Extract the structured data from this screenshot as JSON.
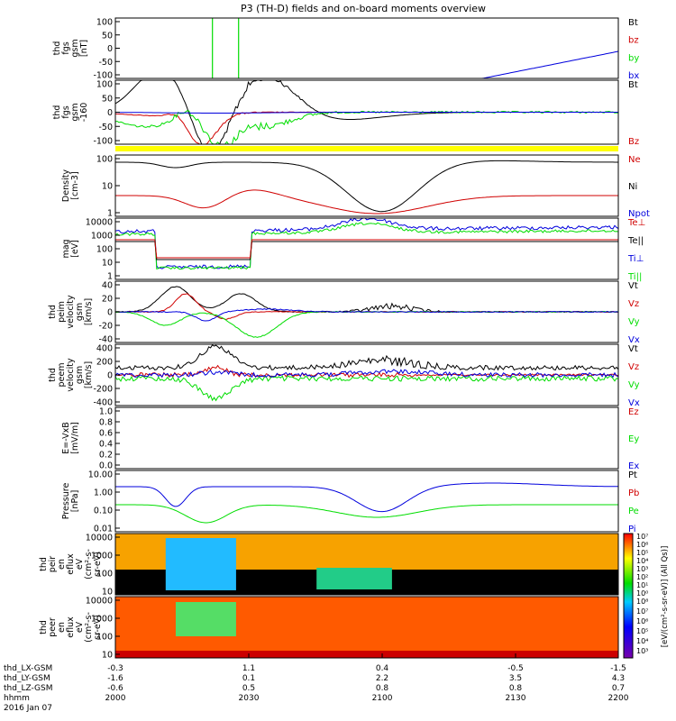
{
  "title": "P3 (TH-D) fields and on-board moments overview",
  "colors": {
    "black": "#000000",
    "red": "#d00000",
    "green": "#00dd00",
    "blue": "#0000dd",
    "yellow": "#ffff00"
  },
  "chart_data": [
    {
      "type": "line",
      "ylabel": [
        "thd",
        "fgs",
        "gsm",
        "[nT]"
      ],
      "yticks": [
        "100",
        "50",
        "0",
        "-50",
        "-100"
      ],
      "ylim": [
        -100,
        100
      ],
      "legend": [
        {
          "label": "Bt",
          "color": "#000000"
        },
        {
          "label": "bz",
          "color": "#d00000"
        },
        {
          "label": "by",
          "color": "#00dd00"
        },
        {
          "label": "bx",
          "color": "#0000dd"
        }
      ]
    },
    {
      "type": "line",
      "ylabel": [
        "thd",
        "fgs",
        "gsm",
        "-160"
      ],
      "yticks": [
        "100",
        "50",
        "0",
        "-50",
        "-100"
      ],
      "ylim": [
        -120,
        110
      ],
      "legend": [
        {
          "label": "Bt",
          "color": "#000000"
        },
        {
          "label": "Bz",
          "color": "#d00000"
        }
      ]
    },
    {
      "type": "line",
      "ylabel": [
        "Density",
        "[cm-3]"
      ],
      "yticks": [
        "100",
        "10",
        "1"
      ],
      "scale": "log",
      "legend": [
        {
          "label": "Ne",
          "color": "#d00000"
        },
        {
          "label": "Ni",
          "color": "#000000"
        },
        {
          "label": "Npot",
          "color": "#0000dd"
        }
      ]
    },
    {
      "type": "line",
      "ylabel": [
        "mag",
        "[eV]"
      ],
      "yticks": [
        "10000",
        "1000",
        "100",
        "10",
        "1"
      ],
      "scale": "log",
      "legend": [
        {
          "label": "Te⊥",
          "color": "#d00000"
        },
        {
          "label": "Te||",
          "color": "#000000"
        },
        {
          "label": "Ti⊥",
          "color": "#0000dd"
        },
        {
          "label": "Ti||",
          "color": "#00dd00"
        }
      ]
    },
    {
      "type": "line",
      "ylabel": [
        "thd",
        "peim",
        "velocity",
        "gsm",
        "[km/s]"
      ],
      "yticks": [
        "40",
        "20",
        "0",
        "-20",
        "-40"
      ],
      "ylim": [
        -40,
        40
      ],
      "legend": [
        {
          "label": "Vt",
          "color": "#000000"
        },
        {
          "label": "Vz",
          "color": "#d00000"
        },
        {
          "label": "Vy",
          "color": "#00dd00"
        },
        {
          "label": "Vx",
          "color": "#0000dd"
        }
      ]
    },
    {
      "type": "line",
      "ylabel": [
        "thd",
        "peem",
        "velocity",
        "gsm",
        "[km/s]"
      ],
      "yticks": [
        "400",
        "200",
        "0",
        "-200",
        "-400"
      ],
      "ylim": [
        -400,
        400
      ],
      "legend": [
        {
          "label": "Vt",
          "color": "#000000"
        },
        {
          "label": "Vz",
          "color": "#d00000"
        },
        {
          "label": "Vy",
          "color": "#00dd00"
        },
        {
          "label": "Vx",
          "color": "#0000dd"
        }
      ]
    },
    {
      "type": "line",
      "ylabel": [
        "E=-VxB",
        "[mV/m]"
      ],
      "yticks": [
        "1.0",
        "0.8",
        "0.6",
        "0.4",
        "0.2",
        "0.0"
      ],
      "ylim": [
        0,
        1
      ],
      "legend": [
        {
          "label": "Ez",
          "color": "#d00000"
        },
        {
          "label": "Ey",
          "color": "#00dd00"
        },
        {
          "label": "Ex",
          "color": "#0000dd"
        }
      ]
    },
    {
      "type": "line",
      "ylabel": [
        "Pressure",
        "[nPa]"
      ],
      "yticks": [
        "10.00",
        "1.00",
        "0.10",
        "0.01"
      ],
      "scale": "log",
      "legend": [
        {
          "label": "Pt",
          "color": "#000000"
        },
        {
          "label": "Pb",
          "color": "#d00000"
        },
        {
          "label": "Pe",
          "color": "#00dd00"
        },
        {
          "label": "Pi",
          "color": "#0000dd"
        }
      ]
    },
    {
      "type": "heatmap",
      "ylabel": [
        "thd",
        "peir",
        "en",
        "eflux",
        "eV",
        "(cm²-s-",
        "sr-eV)"
      ],
      "yticks": [
        "10000",
        "1000",
        "100",
        "10"
      ],
      "scale": "log"
    },
    {
      "type": "heatmap",
      "ylabel": [
        "thd",
        "peer",
        "en",
        "eflux",
        "eV",
        "(cm²-s-",
        "sr-eV)"
      ],
      "yticks": [
        "10000",
        "1000",
        "100",
        "10"
      ],
      "scale": "log"
    }
  ],
  "colorbar_ticks_top": [
    "10⁷",
    "10⁶",
    "10⁵",
    "10⁴",
    "10³",
    "10²",
    "10¹",
    "10⁰"
  ],
  "colorbar_ticks_bottom": [
    "10⁸",
    "10⁷",
    "10⁶",
    "10⁵",
    "10⁴",
    "10³"
  ],
  "colorbar_label": "[eV/(cm²-s-sr-eV)] (All Qs)]",
  "xaxis": {
    "row_labels": [
      "thd_LX-GSM",
      "thd_LY-GSM",
      "thd_LZ-GSM",
      "hhmm",
      "2016 Jan 07"
    ],
    "columns": [
      {
        "vals": [
          "-0.3",
          "-1.6",
          "-0.6",
          "2000"
        ]
      },
      {
        "vals": [
          "1.1",
          "0.1",
          "0.5",
          "2030"
        ]
      },
      {
        "vals": [
          "0.4",
          "2.2",
          "0.8",
          "2100"
        ]
      },
      {
        "vals": [
          "-0.5",
          "3.5",
          "0.8",
          "2130"
        ]
      },
      {
        "vals": [
          "-1.5",
          "4.3",
          "0.7",
          "2200"
        ]
      }
    ]
  }
}
